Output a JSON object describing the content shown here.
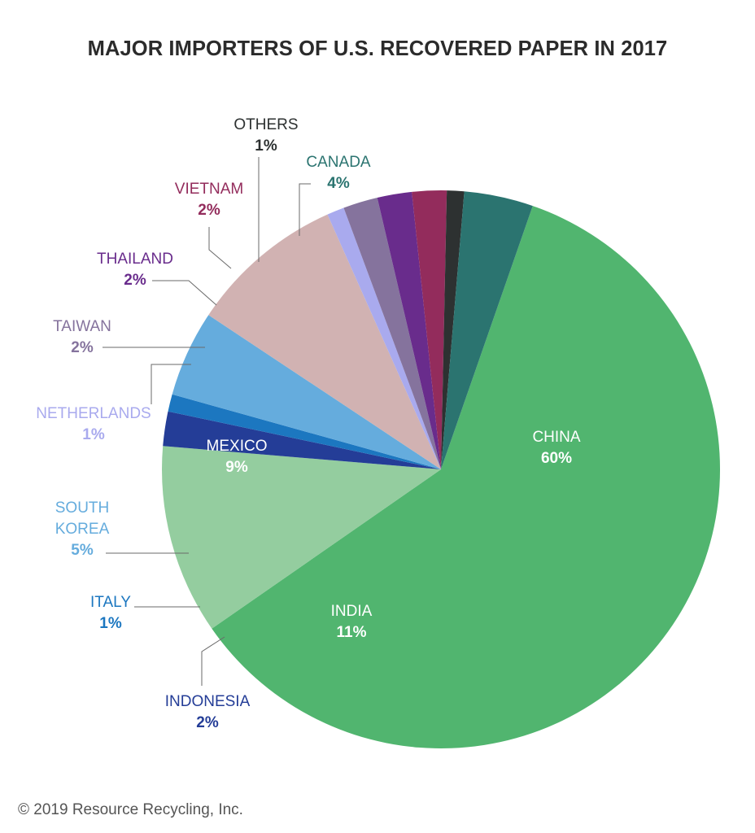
{
  "chart_data": {
    "type": "pie",
    "title": "MAJOR IMPORTERS OF U.S. RECOVERED PAPER IN 2017",
    "slices": [
      {
        "label": "CHINA",
        "value": 60,
        "value_label": "60%",
        "color": "#51b56f"
      },
      {
        "label": "INDIA",
        "value": 11,
        "value_label": "11%",
        "color": "#94cd9f"
      },
      {
        "label": "INDONESIA",
        "value": 2,
        "value_label": "2%",
        "color": "#243d97"
      },
      {
        "label": "ITALY",
        "value": 1,
        "value_label": "1%",
        "color": "#1c77c0"
      },
      {
        "label": "SOUTH KOREA",
        "value": 5,
        "value_label": "5%",
        "color": "#65acdd"
      },
      {
        "label": "MEXICO",
        "value": 9,
        "value_label": "9%",
        "color": "#d1b2b2"
      },
      {
        "label": "NETHERLANDS",
        "value": 1,
        "value_label": "1%",
        "color": "#a9aaee"
      },
      {
        "label": "TAIWAN",
        "value": 2,
        "value_label": "2%",
        "color": "#85739d"
      },
      {
        "label": "THAILAND",
        "value": 2,
        "value_label": "2%",
        "color": "#692c8c"
      },
      {
        "label": "VIETNAM",
        "value": 2,
        "value_label": "2%",
        "color": "#932c5c"
      },
      {
        "label": "OTHERS",
        "value": 1,
        "value_label": "1%",
        "color": "#2d3131"
      },
      {
        "label": "CANADA",
        "value": 4,
        "value_label": "4%",
        "color": "#2b7470"
      }
    ]
  },
  "label_colors": {
    "CANADA": "#2b7470",
    "OTHERS": "#2d3131",
    "VIETNAM": "#932c5c",
    "THAILAND": "#692c8c",
    "TAIWAN": "#85739d",
    "NETHERLANDS": "#a9aaee",
    "SOUTH KOREA": "#65acdd",
    "ITALY": "#1c77c0",
    "INDONESIA": "#243d97"
  },
  "footer": {
    "copyright": "© 2019 Resource Recycling, Inc."
  }
}
